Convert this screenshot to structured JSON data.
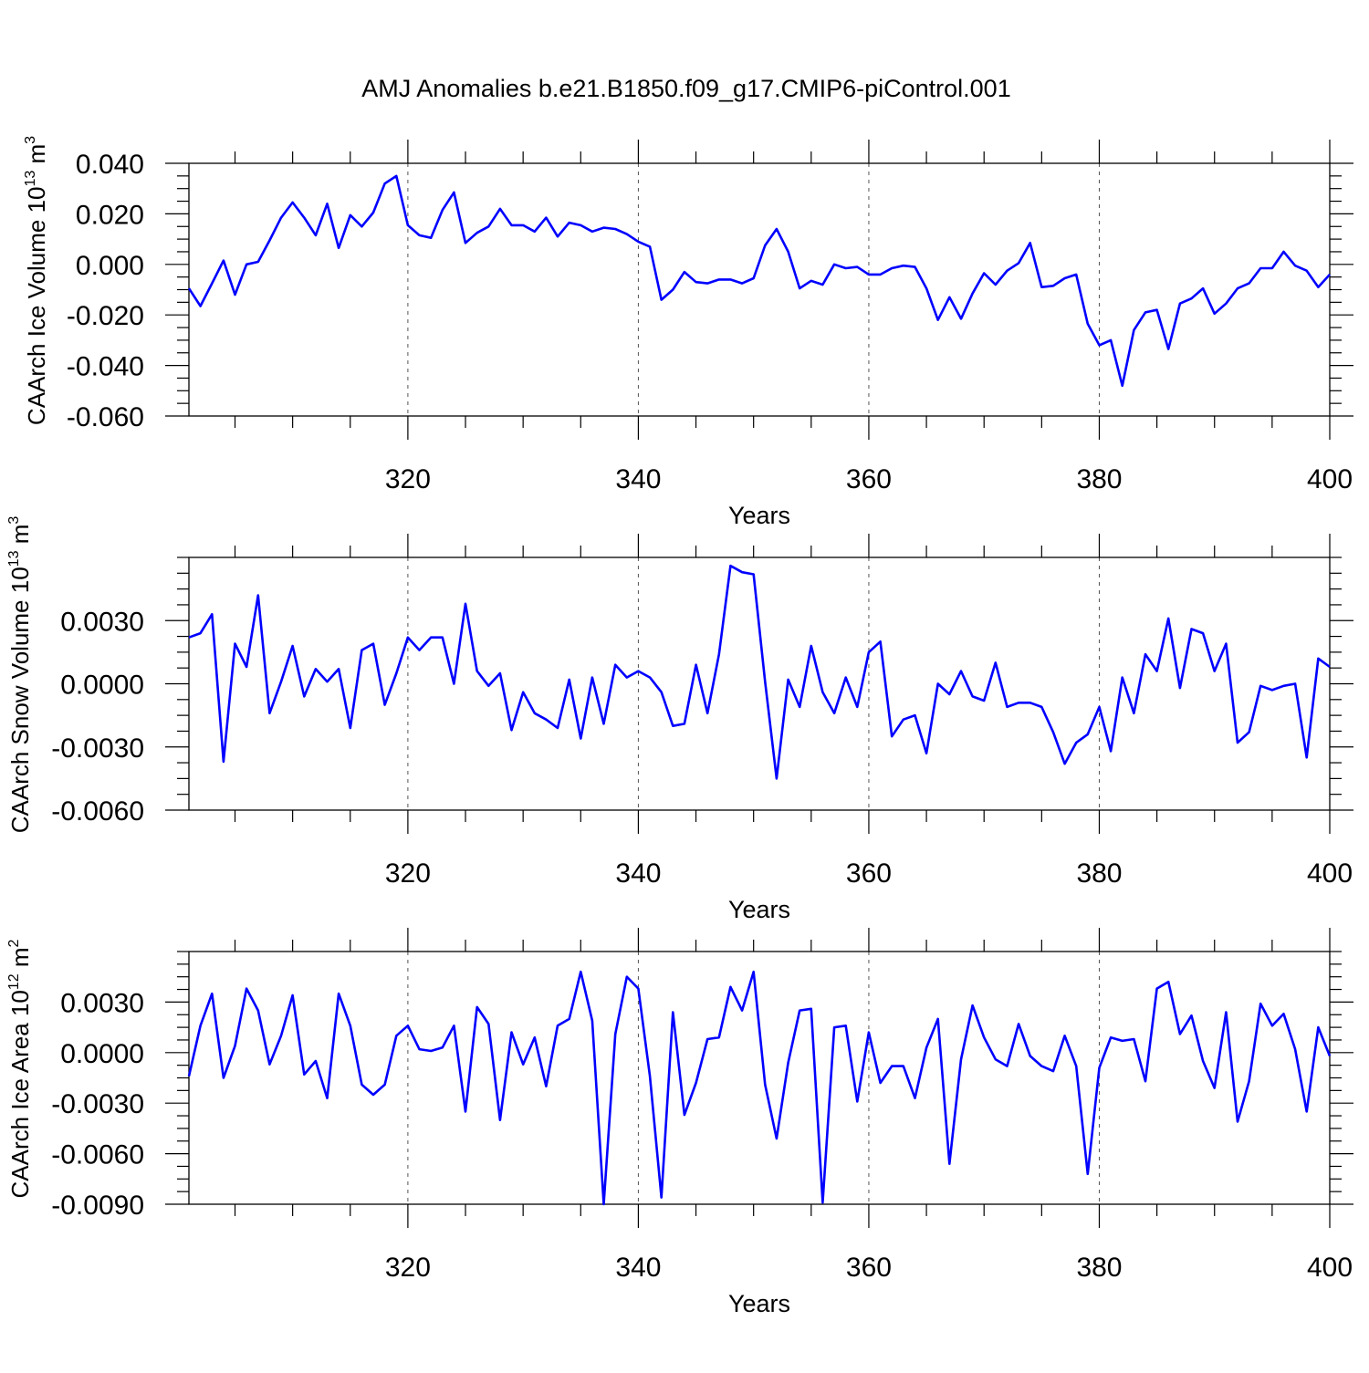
{
  "title": "AMJ Anomalies b.e21.B1850.f09_g17.CMIP6-piControl.001",
  "colors": {
    "line": "#0000ff",
    "grid": "#555555"
  },
  "chart_data": [
    {
      "type": "line",
      "ylabel": {
        "main": "CAArch Ice Volume 10",
        "exp": "13",
        "unit": " m",
        "unit_exp": "3"
      },
      "xlabel": "Years",
      "xlim": [
        301,
        400
      ],
      "ylim": [
        -0.06,
        0.04
      ],
      "x_major_ticks": [
        320,
        340,
        360,
        380,
        400
      ],
      "x_tick_labels": [
        "320",
        "340",
        "360",
        "380",
        "400"
      ],
      "y_major_ticks": [
        -0.06,
        -0.04,
        -0.02,
        0.0,
        0.02,
        0.04
      ],
      "y_tick_labels": [
        "-0.060",
        "-0.040",
        "-0.020",
        "0.000",
        "0.020",
        "0.040"
      ],
      "grid": "dashed vertical at x major ticks",
      "x_start": 301,
      "values": [
        -0.0095,
        -0.0165,
        -0.0075,
        0.0015,
        -0.012,
        0.0,
        0.001,
        0.0095,
        0.0185,
        0.0245,
        0.0185,
        0.0115,
        0.024,
        0.0065,
        0.0195,
        0.015,
        0.0205,
        0.032,
        0.035,
        0.0155,
        0.0115,
        0.0105,
        0.0215,
        0.0285,
        0.0085,
        0.0125,
        0.015,
        0.022,
        0.0155,
        0.0155,
        0.013,
        0.0185,
        0.011,
        0.0165,
        0.0155,
        0.013,
        0.0145,
        0.014,
        0.012,
        0.009,
        0.007,
        -0.014,
        -0.01,
        -0.003,
        -0.007,
        -0.0075,
        -0.006,
        -0.006,
        -0.0075,
        -0.0055,
        0.0075,
        0.014,
        0.005,
        -0.0095,
        -0.0065,
        -0.008,
        0.0,
        -0.0015,
        -0.001,
        -0.004,
        -0.004,
        -0.0015,
        -0.0005,
        -0.001,
        -0.0095,
        -0.022,
        -0.013,
        -0.0215,
        -0.0115,
        -0.0035,
        -0.008,
        -0.0025,
        0.0005,
        0.0085,
        -0.009,
        -0.0085,
        -0.0055,
        -0.004,
        -0.0235,
        -0.032,
        -0.03,
        -0.048,
        -0.026,
        -0.019,
        -0.018,
        -0.0335,
        -0.0155,
        -0.0135,
        -0.0095,
        -0.0195,
        -0.0155,
        -0.0095,
        -0.0075,
        -0.0015,
        -0.0015,
        0.005,
        -0.0005,
        -0.0025,
        -0.009,
        -0.004
      ]
    },
    {
      "type": "line",
      "ylabel": {
        "main": "CAArch Snow Volume 10",
        "exp": "13",
        "unit": " m",
        "unit_exp": "3"
      },
      "xlabel": "Years",
      "xlim": [
        301,
        400
      ],
      "ylim": [
        -0.006,
        0.006
      ],
      "x_major_ticks": [
        320,
        340,
        360,
        380,
        400
      ],
      "x_tick_labels": [
        "320",
        "340",
        "360",
        "380",
        "400"
      ],
      "y_major_ticks": [
        -0.006,
        -0.003,
        0.0,
        0.003
      ],
      "y_tick_labels": [
        "-0.0060",
        "-0.0030",
        "0.0000",
        "0.0030"
      ],
      "grid": "dashed vertical at x major ticks",
      "x_start": 301,
      "values": [
        0.0022,
        0.0024,
        0.0033,
        -0.0037,
        0.0019,
        0.0008,
        0.0042,
        -0.0014,
        0.0001,
        0.0018,
        -0.0006,
        0.0007,
        0.0001,
        0.0007,
        -0.0021,
        0.0016,
        0.0019,
        -0.001,
        0.0005,
        0.0022,
        0.0016,
        0.0022,
        0.0022,
        0.0,
        0.0038,
        0.0006,
        -0.0001,
        0.0005,
        -0.0022,
        -0.0004,
        -0.0014,
        -0.0017,
        -0.0021,
        0.0002,
        -0.0026,
        0.0003,
        -0.0019,
        0.0009,
        0.0003,
        0.0006,
        0.0003,
        -0.0004,
        -0.002,
        -0.0019,
        0.0009,
        -0.0014,
        0.0014,
        0.0056,
        0.0053,
        0.0052,
        0.0001,
        -0.0045,
        0.0002,
        -0.0011,
        0.0018,
        -0.0004,
        -0.0014,
        0.0003,
        -0.0011,
        0.0015,
        0.002,
        -0.0025,
        -0.0017,
        -0.0015,
        -0.0033,
        0.0,
        -0.0005,
        0.0006,
        -0.0006,
        -0.0008,
        0.001,
        -0.0011,
        -0.0009,
        -0.0009,
        -0.0011,
        -0.0023,
        -0.0038,
        -0.0028,
        -0.0024,
        -0.0011,
        -0.0032,
        0.0003,
        -0.0014,
        0.0014,
        0.0006,
        0.0031,
        -0.0002,
        0.0026,
        0.0024,
        0.0006,
        0.0019,
        -0.0028,
        -0.0023,
        -0.0001,
        -0.0003,
        -0.0001,
        0.0,
        -0.0035,
        0.0012,
        0.0008
      ]
    },
    {
      "type": "line",
      "ylabel": {
        "main": "CAArch Ice Area 10",
        "exp": "12",
        "unit": " m",
        "unit_exp": "2"
      },
      "xlabel": "Years",
      "xlim": [
        301,
        400
      ],
      "ylim": [
        -0.009,
        0.006
      ],
      "x_major_ticks": [
        320,
        340,
        360,
        380,
        400
      ],
      "x_tick_labels": [
        "320",
        "340",
        "360",
        "380",
        "400"
      ],
      "y_major_ticks": [
        -0.009,
        -0.006,
        -0.003,
        0.0,
        0.003
      ],
      "y_tick_labels": [
        "-0.0090",
        "-0.0060",
        "-0.0030",
        "0.0000",
        "0.0030"
      ],
      "grid": "dashed vertical at x major ticks",
      "x_start": 301,
      "values": [
        -0.0014,
        0.0016,
        0.0035,
        -0.0015,
        0.0004,
        0.0038,
        0.0025,
        -0.0007,
        0.001,
        0.0034,
        -0.0013,
        -0.0005,
        -0.0027,
        0.0035,
        0.0016,
        -0.0019,
        -0.0025,
        -0.0019,
        0.001,
        0.0016,
        0.0002,
        0.0001,
        0.0003,
        0.0016,
        -0.0035,
        0.0027,
        0.0017,
        -0.004,
        0.0012,
        -0.0007,
        0.0009,
        -0.002,
        0.0016,
        0.002,
        0.0048,
        0.0019,
        -0.009,
        0.0011,
        0.0045,
        0.0038,
        -0.0014,
        -0.0086,
        0.0024,
        -0.0037,
        -0.0018,
        0.0008,
        0.0009,
        0.0039,
        0.0025,
        0.0048,
        -0.0019,
        -0.0051,
        -0.0006,
        0.0025,
        0.0026,
        -0.0089,
        0.0015,
        0.0016,
        -0.0029,
        0.0012,
        -0.0018,
        -0.0008,
        -0.0008,
        -0.0027,
        0.0003,
        0.002,
        -0.0066,
        -0.0004,
        0.0028,
        0.0009,
        -0.0004,
        -0.0008,
        0.0017,
        -0.0002,
        -0.0008,
        -0.0011,
        0.001,
        -0.0008,
        -0.0072,
        -0.0009,
        0.0009,
        0.0007,
        0.0008,
        -0.0017,
        0.0038,
        0.0042,
        0.0011,
        0.0022,
        -0.0005,
        -0.0021,
        0.0024,
        -0.0041,
        -0.0017,
        0.0029,
        0.0016,
        0.0023,
        0.0002,
        -0.0035,
        0.0015,
        -0.0002
      ]
    }
  ]
}
